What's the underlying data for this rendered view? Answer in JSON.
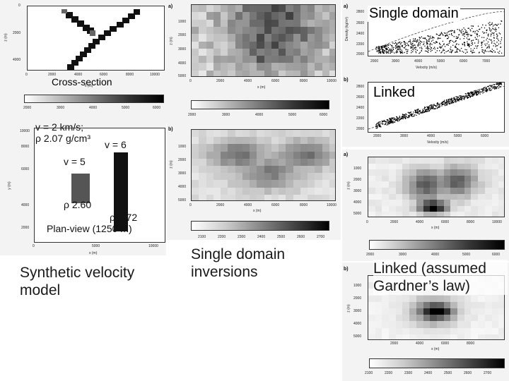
{
  "left": {
    "cross_section_label": "Cross-section",
    "cross_section_xticks": [
      "0",
      "2000",
      "4000",
      "6000",
      "8000",
      "10000"
    ],
    "cross_section_yticks": [
      "0",
      "2000",
      "4000"
    ],
    "cross_section_ylabel": "z (m)",
    "cross_section_xlabel": "x (m)",
    "colorbar_ticks": [
      "2000",
      "3000",
      "4000",
      "5000",
      "6000"
    ],
    "plan_view_label": "Plan-view (1250 m)",
    "plan_yticks": [
      "2000",
      "4000",
      "6000",
      "8000",
      "10000"
    ],
    "plan_xticks": [
      "0",
      "5000",
      "10000"
    ],
    "plan_ylabel": "y (m)",
    "plan_xlabel": "x (m)",
    "anno_v_bg": "v = 2 km/s;",
    "anno_rho_bg": "ρ 2.07 g/cm³",
    "anno_v6": "v = 6",
    "anno_v5": "v = 5",
    "anno_rho_260": "ρ 2.60",
    "anno_rho_272": "ρ 2.72",
    "caption": "Synthetic velocity model"
  },
  "middle": {
    "panel_a_tag": "a)",
    "panel_b_tag": "b)",
    "a_yticks": [
      "1000",
      "2000",
      "3000",
      "4000",
      "5000"
    ],
    "a_xticks": [
      "0",
      "2000",
      "4000",
      "6000",
      "8000",
      "10000"
    ],
    "a_xlabel": "x (m)",
    "a_ylabel": "z (m)",
    "a_colorbar_ticks": [
      "2000",
      "3000",
      "4000",
      "5000",
      "6000"
    ],
    "b_yticks": [
      "1000",
      "2000",
      "3000",
      "4000",
      "5000"
    ],
    "b_xticks": [
      "0",
      "2000",
      "4000",
      "6000",
      "8000",
      "10000"
    ],
    "b_xlabel": "x (m)",
    "b_ylabel": "z (m)",
    "b_colorbar_ticks": [
      "2100",
      "2200",
      "2300",
      "2400",
      "2500",
      "2600",
      "2700"
    ],
    "caption": "Single domain inversions"
  },
  "right": {
    "scatter_a_tag": "a)",
    "scatter_b_tag": "b)",
    "single_domain_label": "Single domain",
    "linked_label": "Linked",
    "scatter_ylabel": "Density (kg/m³)",
    "scatter_xlabel": "Velocity (m/s)",
    "scatter_a_xticks": [
      "2000",
      "3000",
      "4000",
      "5000",
      "6000",
      "7000"
    ],
    "scatter_a_yticks": [
      "2000",
      "2200",
      "2400",
      "2600",
      "2800"
    ],
    "scatter_b_xticks": [
      "2000",
      "3000",
      "4000",
      "5000",
      "6000"
    ],
    "scatter_b_yticks": [
      "2000",
      "2200",
      "2400",
      "2600",
      "2800"
    ],
    "img_a_tag": "a)",
    "img_b_tag": "b)",
    "img_a_yticks": [
      "1000",
      "2000",
      "3000",
      "4000",
      "5000"
    ],
    "img_a_xticks": [
      "0",
      "2000",
      "4000",
      "6000",
      "8000",
      "10000"
    ],
    "img_a_colorbar_ticks": [
      "2000",
      "3000",
      "4000",
      "5000",
      "6000"
    ],
    "img_b_yticks": [
      "1000",
      "2000",
      "3000",
      "4000",
      "5000"
    ],
    "img_b_xticks": [
      "2000",
      "4000",
      "6000",
      "8000"
    ],
    "img_b_colorbar_ticks": [
      "2100",
      "2200",
      "2300",
      "2400",
      "2500",
      "2600",
      "2700"
    ],
    "x_label": "x (m)",
    "z_label": "z (m)",
    "caption": "Linked (assumed Gardner’s law)"
  }
}
